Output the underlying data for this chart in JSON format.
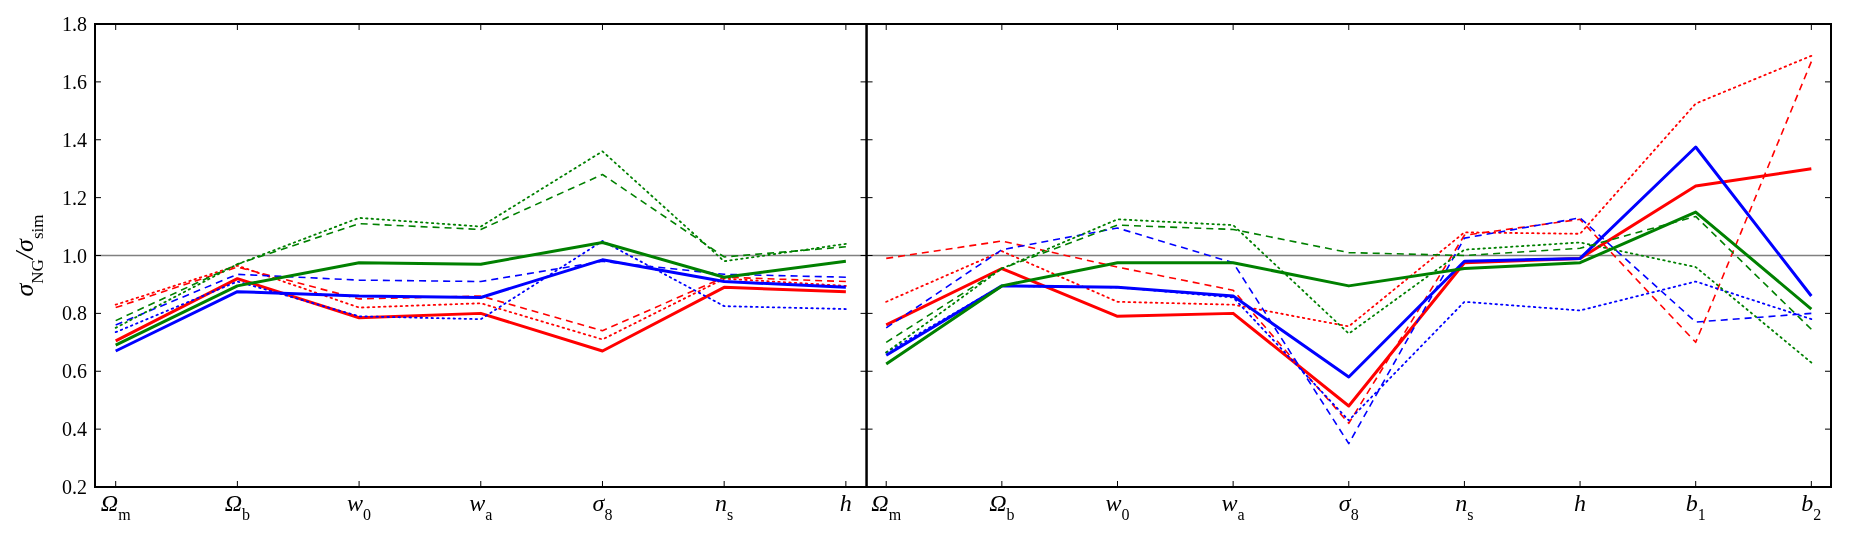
{
  "chart_data": [
    {
      "type": "line",
      "ylabel": "σ$_{NG}$/σ$_{sim}$",
      "categories": [
        "Ω$_{m}$",
        "Ω$_{b}$",
        "w$_{0}$",
        "w$_{a}$",
        "σ$_{8}$",
        "n$_{s}$",
        "h"
      ],
      "ylim": [
        0.2,
        1.8
      ],
      "yticks": [
        {
          "value": 0.2,
          "label": "0.2"
        },
        {
          "value": 0.4,
          "label": "0.4"
        },
        {
          "value": 0.6,
          "label": "0.6"
        },
        {
          "value": 0.8,
          "label": "0.8"
        },
        {
          "value": 1.0,
          "label": "1.0"
        },
        {
          "value": 1.2,
          "label": "1.2"
        },
        {
          "value": 1.4,
          "label": "1.4"
        },
        {
          "value": 1.6,
          "label": "1.6"
        },
        {
          "value": 1.8,
          "label": "1.8"
        }
      ],
      "grid": false,
      "marker": "none",
      "ref_lines": [
        {
          "axis": "y",
          "value": 1.0,
          "color": "#808080"
        }
      ],
      "series": [
        {
          "color": "#ff0000",
          "line_style": "solid",
          "values": [
            0.705,
            0.92,
            0.785,
            0.8,
            0.67,
            0.89,
            0.875
          ]
        },
        {
          "color": "#ff0000",
          "line_style": "dashed",
          "values": [
            0.82,
            0.96,
            0.85,
            0.86,
            0.74,
            0.925,
            0.91
          ]
        },
        {
          "color": "#ff0000",
          "line_style": "dotted",
          "values": [
            0.83,
            0.965,
            0.82,
            0.835,
            0.71,
            0.92,
            0.895
          ]
        },
        {
          "color": "#0000ff",
          "line_style": "solid",
          "values": [
            0.67,
            0.875,
            0.86,
            0.855,
            0.985,
            0.91,
            0.89
          ]
        },
        {
          "color": "#0000ff",
          "line_style": "dashed",
          "values": [
            0.76,
            0.935,
            0.915,
            0.91,
            0.98,
            0.935,
            0.925
          ]
        },
        {
          "color": "#0000ff",
          "line_style": "dotted",
          "values": [
            0.735,
            0.91,
            0.79,
            0.78,
            1.05,
            0.825,
            0.815
          ]
        },
        {
          "color": "#008000",
          "line_style": "solid",
          "values": [
            0.69,
            0.895,
            0.975,
            0.97,
            1.045,
            0.925,
            0.98
          ]
        },
        {
          "color": "#008000",
          "line_style": "dashed",
          "values": [
            0.775,
            0.97,
            1.11,
            1.09,
            1.28,
            0.995,
            1.03
          ]
        },
        {
          "color": "#008000",
          "line_style": "dotted",
          "values": [
            0.75,
            0.97,
            1.13,
            1.1,
            1.36,
            0.98,
            1.04
          ]
        }
      ]
    },
    {
      "type": "line",
      "categories": [
        "Ω$_{m}$",
        "Ω$_{b}$",
        "w$_{0}$",
        "w$_{a}$",
        "σ$_{8}$",
        "n$_{s}$",
        "h",
        "b$_{1}$",
        "b$_{2}$"
      ],
      "ylim": [
        0.2,
        1.8
      ],
      "yticks": [
        {
          "value": 0.2,
          "label": null
        },
        {
          "value": 0.4,
          "label": null
        },
        {
          "value": 0.6,
          "label": null
        },
        {
          "value": 0.8,
          "label": null
        },
        {
          "value": 1.0,
          "label": null
        },
        {
          "value": 1.2,
          "label": null
        },
        {
          "value": 1.4,
          "label": null
        },
        {
          "value": 1.6,
          "label": null
        },
        {
          "value": 1.8,
          "label": null
        }
      ],
      "tick_labels": "x",
      "grid": false,
      "marker": "none",
      "ref_lines": [
        {
          "axis": "y",
          "value": 1.0,
          "color": "#808080"
        }
      ],
      "series": [
        {
          "color": "#ff0000",
          "line_style": "solid",
          "values": [
            0.76,
            0.955,
            0.79,
            0.8,
            0.48,
            0.975,
            0.99,
            1.24,
            1.3
          ]
        },
        {
          "color": "#ff0000",
          "line_style": "dashed",
          "values": [
            0.99,
            1.05,
            0.96,
            0.88,
            0.42,
            1.07,
            1.125,
            0.7,
            1.67
          ]
        },
        {
          "color": "#ff0000",
          "line_style": "dotted",
          "values": [
            0.84,
            1.015,
            0.84,
            0.83,
            0.755,
            1.08,
            1.075,
            1.525,
            1.69
          ]
        },
        {
          "color": "#0000ff",
          "line_style": "solid",
          "values": [
            0.655,
            0.895,
            0.89,
            0.86,
            0.58,
            0.98,
            0.99,
            1.375,
            0.86
          ]
        },
        {
          "color": "#0000ff",
          "line_style": "dashed",
          "values": [
            0.75,
            1.02,
            1.095,
            0.975,
            0.35,
            1.06,
            1.13,
            0.77,
            0.8
          ]
        },
        {
          "color": "#0000ff",
          "line_style": "dotted",
          "values": [
            0.665,
            0.895,
            0.89,
            0.855,
            0.43,
            0.84,
            0.81,
            0.91,
            0.78
          ]
        },
        {
          "color": "#008000",
          "line_style": "solid",
          "values": [
            0.625,
            0.895,
            0.975,
            0.975,
            0.895,
            0.955,
            0.975,
            1.15,
            0.815
          ]
        },
        {
          "color": "#008000",
          "line_style": "dashed",
          "values": [
            0.7,
            0.955,
            1.105,
            1.09,
            1.01,
            1.0,
            1.025,
            1.135,
            0.745
          ]
        },
        {
          "color": "#008000",
          "line_style": "dotted",
          "values": [
            0.665,
            0.955,
            1.125,
            1.105,
            0.73,
            1.02,
            1.045,
            0.96,
            0.63
          ]
        }
      ]
    }
  ]
}
